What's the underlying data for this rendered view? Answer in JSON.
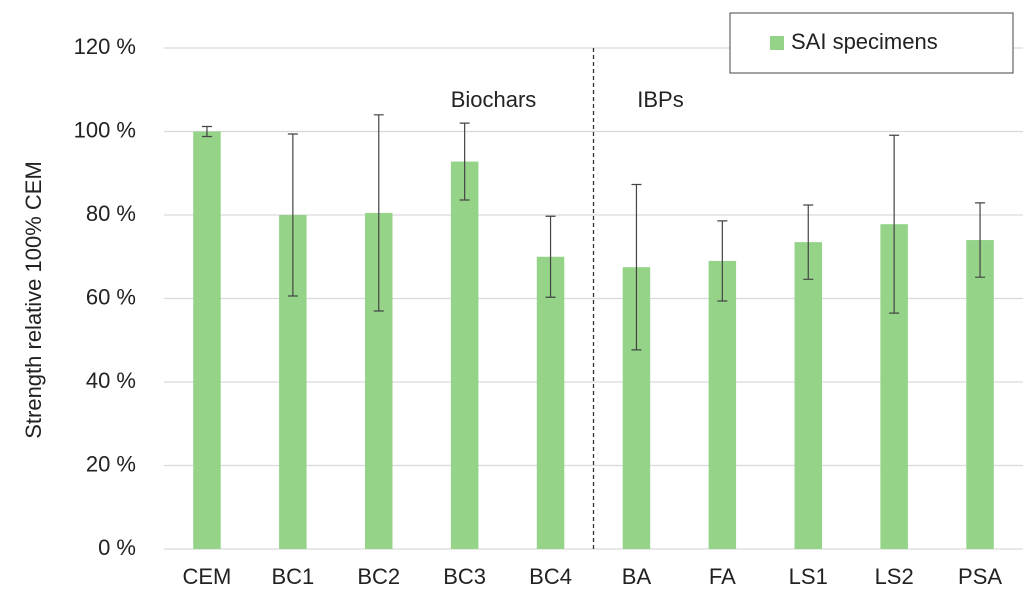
{
  "chart_data": {
    "type": "bar",
    "y_label": "Strength relative 100% CEM",
    "categories": [
      "CEM",
      "BC1",
      "BC2",
      "BC3",
      "BC4",
      "BA",
      "FA",
      "LS1",
      "LS2",
      "PSA"
    ],
    "series": [
      {
        "name": "SAI specimens",
        "color": "#94d388",
        "values": [
          100,
          80,
          80.5,
          92.8,
          70,
          67.5,
          69,
          73.5,
          77.8,
          74
        ],
        "errors": [
          1.2,
          19.4,
          23.5,
          9.2,
          9.7,
          19.8,
          9.6,
          8.9,
          21.3,
          8.9
        ]
      }
    ],
    "annotations": [
      "Biochars",
      "IBPs"
    ],
    "ylim": [
      0,
      120
    ],
    "yticks": [
      {
        "value": 0,
        "label": "0 %"
      },
      {
        "value": 20,
        "label": "20 %"
      },
      {
        "value": 40,
        "label": "40 %"
      },
      {
        "value": 60,
        "label": "60 %"
      },
      {
        "value": 80,
        "label": "80 %"
      },
      {
        "value": 100,
        "label": "100 %"
      },
      {
        "value": 120,
        "label": "120 %"
      }
    ],
    "grid": true,
    "legend": "top-right"
  }
}
